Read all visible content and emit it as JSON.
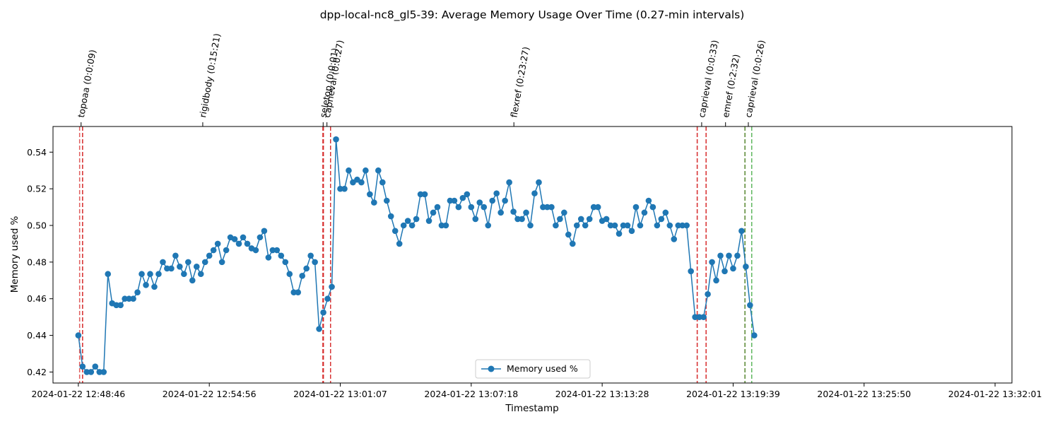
{
  "chart_data": {
    "type": "line",
    "title": "dpp-local-nc8_gl5-39: Average Memory Usage Over Time (0.27-min intervals)",
    "xlabel": "Timestamp",
    "ylabel": "Memory used %",
    "xlim": [
      -6,
      221
    ],
    "ylim": [
      0.414,
      0.554
    ],
    "x_ticks": [
      {
        "pos": 0,
        "label": "2024-01-22 12:48:46"
      },
      {
        "pos": 31,
        "label": "2024-01-22 12:54:56"
      },
      {
        "pos": 62,
        "label": "2024-01-22 13:01:07"
      },
      {
        "pos": 93,
        "label": "2024-01-22 13:07:18"
      },
      {
        "pos": 124,
        "label": "2024-01-22 13:13:28"
      },
      {
        "pos": 155,
        "label": "2024-01-22 13:19:39"
      },
      {
        "pos": 186,
        "label": "2024-01-22 13:25:50"
      },
      {
        "pos": 217,
        "label": "2024-01-22 13:32:01"
      }
    ],
    "y_ticks": [
      0.42,
      0.44,
      0.46,
      0.48,
      0.5,
      0.52,
      0.54
    ],
    "legend": {
      "position": "bottom-center",
      "label": "Memory used %"
    },
    "grid": false,
    "series": [
      {
        "name": "Memory used %",
        "color": "#1f77b4",
        "marker": "circle",
        "values": [
          0.44,
          0.423,
          0.42,
          0.42,
          0.423,
          0.42,
          0.42,
          0.4735,
          0.4575,
          0.4565,
          0.4565,
          0.46,
          0.46,
          0.46,
          0.4635,
          0.4735,
          0.4675,
          0.4735,
          0.4665,
          0.4735,
          0.48,
          0.4765,
          0.4765,
          0.4835,
          0.4775,
          0.4735,
          0.48,
          0.47,
          0.4775,
          0.4735,
          0.48,
          0.4835,
          0.4865,
          0.49,
          0.48,
          0.4865,
          0.4935,
          0.4925,
          0.49,
          0.4935,
          0.49,
          0.4875,
          0.4865,
          0.4935,
          0.497,
          0.4825,
          0.4865,
          0.4865,
          0.4835,
          0.48,
          0.4735,
          0.4635,
          0.4635,
          0.4725,
          0.4765,
          0.4835,
          0.48,
          0.4435,
          0.4525,
          0.46,
          0.4665,
          0.547,
          0.52,
          0.52,
          0.53,
          0.5235,
          0.525,
          0.5235,
          0.53,
          0.517,
          0.5125,
          0.53,
          0.5235,
          0.5135,
          0.505,
          0.497,
          0.49,
          0.5,
          0.5025,
          0.5,
          0.5035,
          0.517,
          0.517,
          0.5025,
          0.507,
          0.51,
          0.5,
          0.5,
          0.5135,
          0.5135,
          0.51,
          0.515,
          0.517,
          0.51,
          0.5035,
          0.5125,
          0.51,
          0.5,
          0.5135,
          0.5175,
          0.507,
          0.5135,
          0.5235,
          0.5075,
          0.5035,
          0.5035,
          0.507,
          0.5,
          0.5175,
          0.5235,
          0.51,
          0.51,
          0.51,
          0.5,
          0.5035,
          0.507,
          0.495,
          0.49,
          0.5,
          0.5035,
          0.5,
          0.5035,
          0.51,
          0.51,
          0.5025,
          0.5035,
          0.5,
          0.5,
          0.4955,
          0.5,
          0.5,
          0.497,
          0.51,
          0.5,
          0.507,
          0.5135,
          0.51,
          0.5,
          0.5035,
          0.507,
          0.5,
          0.4925,
          0.5,
          0.5,
          0.5,
          0.475,
          0.45,
          0.45,
          0.45,
          0.4625,
          0.48,
          0.47,
          0.4835,
          0.475,
          0.4835,
          0.4765,
          0.4835,
          0.497,
          0.4775,
          0.4565,
          0.44
        ]
      }
    ],
    "stage_markers": [
      {
        "label": "topoaa (0:0:09)",
        "start": 0.3,
        "end": 1.0,
        "color": "#d62728"
      },
      {
        "label": "rigidbody (0:15:21)",
        "start": 1.0,
        "end": 57.9,
        "color": "#d62728"
      },
      {
        "label": "seletop (0:0:01)",
        "start": 57.9,
        "end": 58.0,
        "color": "#d62728"
      },
      {
        "label": "caprieval (0:0:27)",
        "start": 58.0,
        "end": 59.7,
        "color": "#d62728"
      },
      {
        "label": "flexref (0:23:27)",
        "start": 59.7,
        "end": 146.5,
        "color": "#d62728"
      },
      {
        "label": "caprieval (0:0:33)",
        "start": 146.5,
        "end": 148.6,
        "color": "#d62728"
      },
      {
        "label": "emref (0:2:32)",
        "start": 148.6,
        "end": 157.8,
        "color": "#d62728"
      },
      {
        "label": "caprieval (0:0:26)",
        "start": 157.8,
        "end": 159.4,
        "color": "#2ca02c"
      }
    ]
  }
}
